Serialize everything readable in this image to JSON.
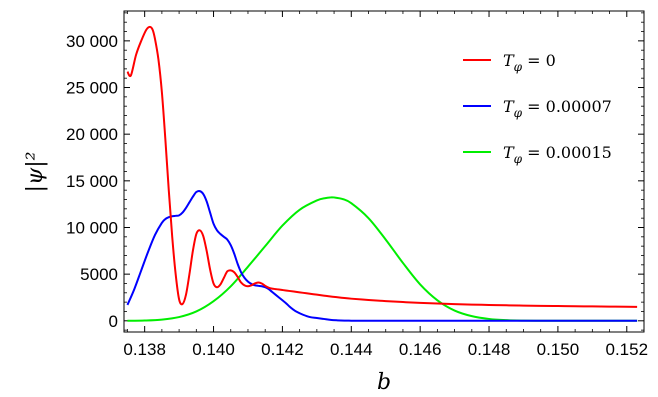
{
  "chart_data": {
    "type": "line",
    "xlabel": "b",
    "ylabel": "|ψ|²",
    "xlim": [
      0.1374,
      0.1525
    ],
    "ylim": [
      -1200,
      33200
    ],
    "xticks": [
      0.138,
      0.14,
      0.142,
      0.144,
      0.146,
      0.148,
      0.15,
      0.152
    ],
    "xtick_labels": [
      "0.138",
      "0.140",
      "0.142",
      "0.144",
      "0.146",
      "0.148",
      "0.150",
      "0.152"
    ],
    "yticks": [
      0,
      5000,
      10000,
      15000,
      20000,
      25000,
      30000
    ],
    "ytick_labels": [
      "0",
      "5000",
      "10 000",
      "15 000",
      "20 000",
      "25 000",
      "30 000"
    ],
    "grid": false,
    "legend_position": "top-right",
    "series": [
      {
        "name": "T_φ = 0",
        "legend": {
          "sym": "T",
          "sub": "φ",
          "rest": " = 0"
        },
        "color": "#ff0000",
        "x": [
          0.1375,
          0.1376,
          0.13775,
          0.1379,
          0.13805,
          0.13815,
          0.13823,
          0.1383,
          0.1384,
          0.1385,
          0.1386,
          0.1387,
          0.1388,
          0.1389,
          0.139,
          0.1391,
          0.1392,
          0.1393,
          0.1394,
          0.1395,
          0.1396,
          0.1397,
          0.1398,
          0.1399,
          0.14,
          0.1401,
          0.1402,
          0.1403,
          0.1404,
          0.1405,
          0.1406,
          0.1407,
          0.1408,
          0.1409,
          0.141,
          0.1411,
          0.1412,
          0.1413,
          0.1414,
          0.1415,
          0.1416,
          0.1417,
          0.1418,
          0.1419,
          0.142,
          0.1421,
          0.1422,
          0.1424,
          0.1426,
          0.1428,
          0.143,
          0.1432,
          0.1434,
          0.1436,
          0.1438,
          0.144,
          0.1445,
          0.145,
          0.1455,
          0.146,
          0.1465,
          0.147,
          0.1475,
          0.148,
          0.1485,
          0.149,
          0.1495,
          0.15,
          0.1505,
          0.151,
          0.1515,
          0.152,
          0.1523
        ],
        "y": [
          26700,
          26300,
          28500,
          30000,
          31200,
          31500,
          31200,
          30200,
          28000,
          24500,
          19500,
          14000,
          9000,
          5000,
          2300,
          1800,
          2800,
          5000,
          7500,
          9300,
          9700,
          9100,
          7500,
          5500,
          4000,
          3600,
          3900,
          4600,
          5300,
          5400,
          5200,
          4700,
          4100,
          3800,
          3700,
          3800,
          4000,
          4100,
          4000,
          3750,
          3550,
          3450,
          3400,
          3350,
          3300,
          3250,
          3200,
          3100,
          3000,
          2900,
          2800,
          2700,
          2600,
          2520,
          2440,
          2370,
          2230,
          2110,
          2010,
          1920,
          1850,
          1790,
          1740,
          1700,
          1660,
          1630,
          1600,
          1580,
          1560,
          1540,
          1520,
          1500,
          1490
        ]
      },
      {
        "name": "T_φ = 0.00007",
        "legend": {
          "sym": "T",
          "sub": "φ",
          "rest": " = 0.00007"
        },
        "color": "#0000ff",
        "x": [
          0.1375,
          0.1377,
          0.1379,
          0.1381,
          0.1383,
          0.1385,
          0.1386,
          0.1387,
          0.1388,
          0.1389,
          0.139,
          0.1391,
          0.1392,
          0.1393,
          0.1394,
          0.1395,
          0.1396,
          0.1397,
          0.1398,
          0.1399,
          0.14,
          0.1401,
          0.1402,
          0.1403,
          0.1404,
          0.1405,
          0.1406,
          0.1407,
          0.1408,
          0.1409,
          0.141,
          0.1411,
          0.1412,
          0.1413,
          0.1414,
          0.1415,
          0.1416,
          0.1417,
          0.1418,
          0.1419,
          0.142,
          0.1421,
          0.1422,
          0.1423,
          0.1424,
          0.1426,
          0.1428,
          0.143,
          0.1432,
          0.1434,
          0.1436,
          0.1438,
          0.144,
          0.1442,
          0.1445,
          0.145,
          0.146,
          0.147,
          0.148,
          0.149,
          0.15,
          0.151,
          0.1523
        ],
        "y": [
          1700,
          3400,
          5400,
          7400,
          9200,
          10500,
          10900,
          11100,
          11200,
          11250,
          11300,
          11600,
          12100,
          12700,
          13300,
          13800,
          13900,
          13600,
          12800,
          11600,
          10400,
          9700,
          9300,
          9000,
          8700,
          8100,
          7200,
          6100,
          5200,
          4600,
          4200,
          3950,
          3800,
          3750,
          3700,
          3600,
          3400,
          3100,
          2800,
          2500,
          2200,
          1900,
          1550,
          1250,
          1000,
          650,
          400,
          300,
          200,
          100,
          50,
          20,
          10,
          0,
          0,
          0,
          0,
          0,
          0,
          0,
          0,
          0,
          0
        ]
      },
      {
        "name": "T_φ = 0.00015",
        "legend": {
          "sym": "T",
          "sub": "φ",
          "rest": " = 0.00015"
        },
        "color": "#00ee00",
        "x": [
          0.1375,
          0.138,
          0.1385,
          0.139,
          0.1395,
          0.14,
          0.1405,
          0.141,
          0.1415,
          0.142,
          0.1425,
          0.143,
          0.14325,
          0.1434,
          0.1435,
          0.14375,
          0.144,
          0.1445,
          0.145,
          0.1455,
          0.146,
          0.1465,
          0.147,
          0.1475,
          0.148,
          0.1485,
          0.149,
          0.1495,
          0.15,
          0.151,
          0.1523
        ],
        "y": [
          0,
          30,
          130,
          400,
          1000,
          2100,
          3700,
          5800,
          8000,
          10200,
          11900,
          12900,
          13150,
          13220,
          13220,
          13050,
          12600,
          11000,
          8700,
          6200,
          3900,
          2200,
          1100,
          500,
          200,
          70,
          20,
          5,
          0,
          0,
          0
        ]
      }
    ]
  }
}
